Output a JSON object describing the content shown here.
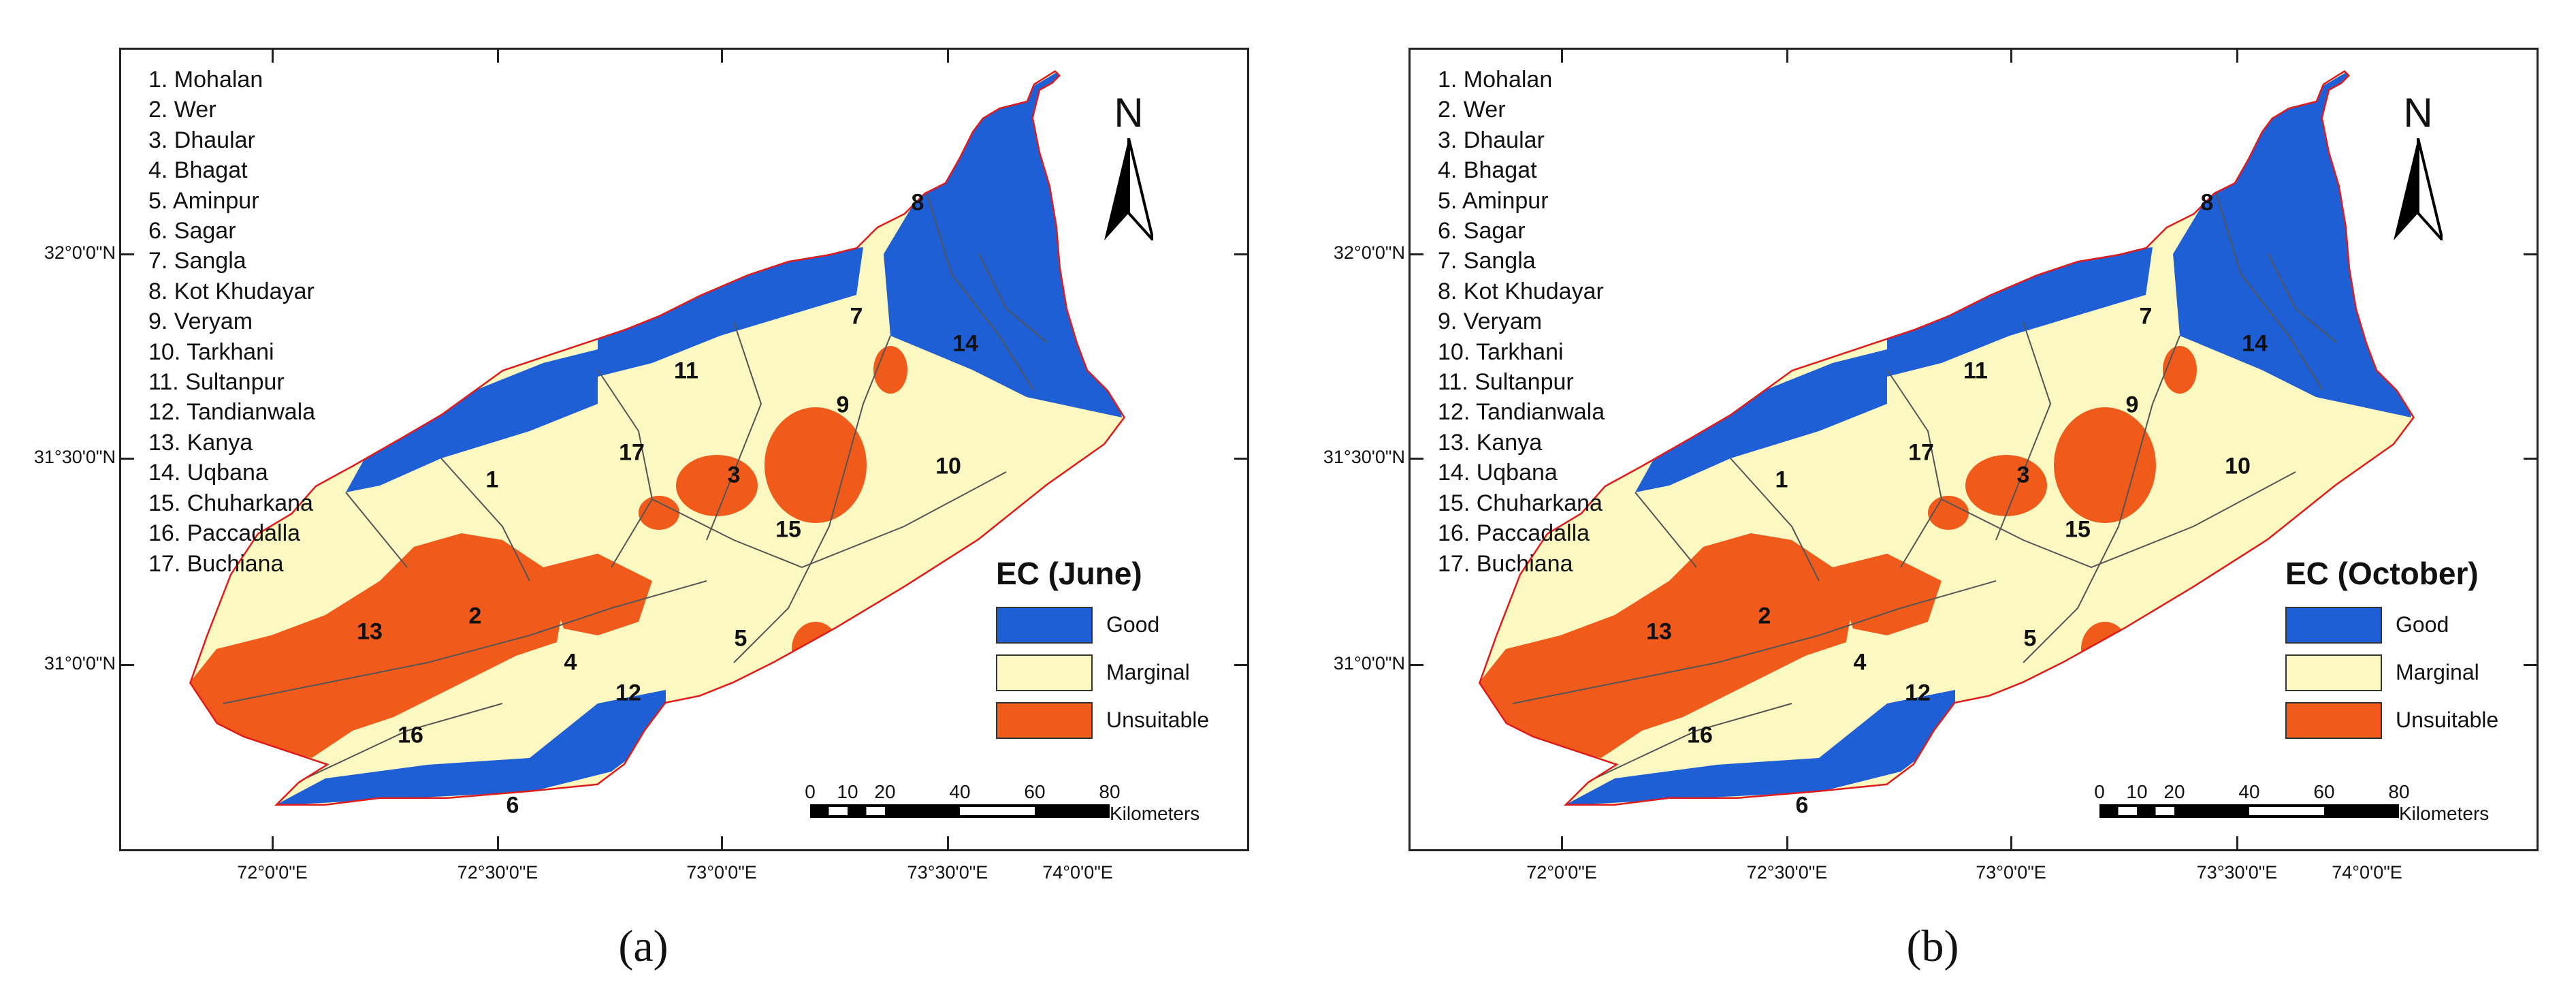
{
  "colors": {
    "good": "#1f5fd6",
    "marginal": "#fbf8c2",
    "unsuitable": "#f05a1a",
    "boundary": "#e01b1b",
    "district_lines": "#555555"
  },
  "legend": {
    "categories": [
      "Good",
      "Marginal",
      "Unsuitable"
    ]
  },
  "district_names": [
    "1. Mohalan",
    "2. Wer",
    "3. Dhaular",
    "4. Bhagat",
    "5. Aminpur",
    "6. Sagar",
    "7. Sangla",
    "8. Kot Khudayar",
    "9. Veryam",
    "10. Tarkhani",
    "11. Sultanpur",
    "12. Tandianwala",
    "13. Kanya",
    "14. Uqbana",
    "15. Chuharkana",
    "16. Paccadalla",
    "17. Buchiana"
  ],
  "district_numbers": [
    "1",
    "2",
    "3",
    "4",
    "5",
    "6",
    "7",
    "8",
    "9",
    "10",
    "11",
    "12",
    "13",
    "14",
    "15",
    "16",
    "17"
  ],
  "north_label": "N",
  "latitude_labels": [
    "32°0'0\"N",
    "31°30'0\"N",
    "31°0'0\"N"
  ],
  "longitude_labels": [
    "72°0'0\"E",
    "72°30'0\"E",
    "73°0'0\"E",
    "73°30'0\"E",
    "74°0'0\"E"
  ],
  "scale_bar": {
    "ticks": [
      "0",
      "10",
      "20",
      "40",
      "60",
      "80"
    ],
    "unit": "Kilometers"
  },
  "panels": [
    {
      "legend_title": "EC (June)",
      "caption": "(a)"
    },
    {
      "legend_title": "EC (October)",
      "caption": "(b)"
    }
  ]
}
